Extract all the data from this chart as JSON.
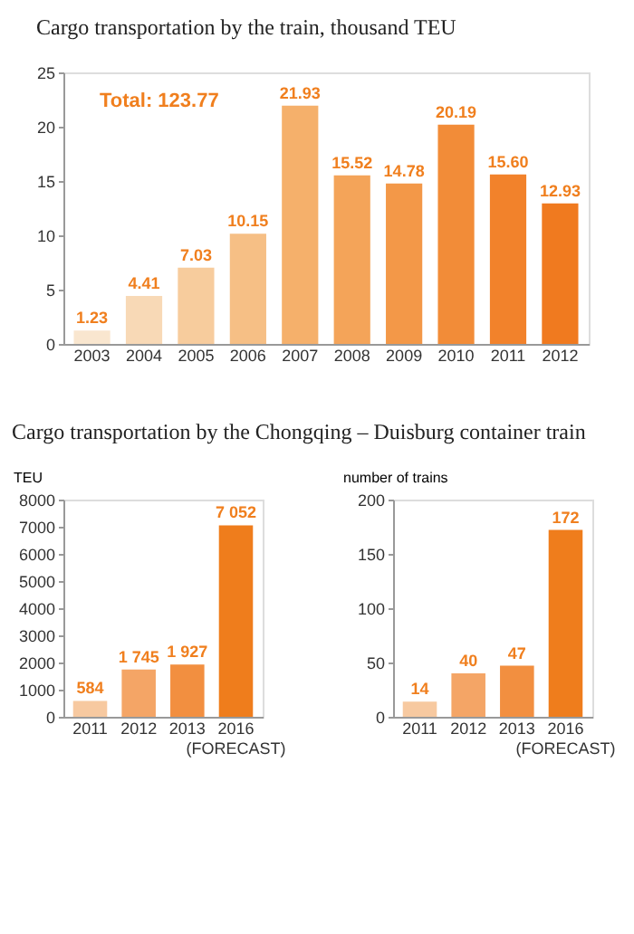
{
  "chart_data": [
    {
      "type": "bar",
      "title": "Cargo transportation by the train, thousand TEU",
      "categories": [
        "2003",
        "2004",
        "2005",
        "2006",
        "2007",
        "2008",
        "2009",
        "2010",
        "2011",
        "2012"
      ],
      "values": [
        1.23,
        4.41,
        7.03,
        10.15,
        21.93,
        15.52,
        14.78,
        20.19,
        15.6,
        12.93
      ],
      "value_labels": [
        "1.23",
        "4.41",
        "7.03",
        "10.15",
        "21.93",
        "15.52",
        "14.78",
        "20.19",
        "15.60",
        "12.93"
      ],
      "colors": [
        "#f9e6cf",
        "#f8d9b6",
        "#f7cc9d",
        "#f6bf85",
        "#f5b06b",
        "#f4a459",
        "#f39848",
        "#f28c38",
        "#f2822b",
        "#f07a1f"
      ],
      "ylim": [
        0,
        25
      ],
      "yticks": [
        0,
        5,
        10,
        15,
        20,
        25
      ],
      "grid": false,
      "annotations": [
        "Total: 123.77"
      ]
    },
    {
      "type": "bar",
      "title": "Cargo transportation by the Chongqing – Duisburg container train",
      "ylabel": "TEU",
      "categories": [
        "2011",
        "2012",
        "2013",
        "2016 (FORECAST)"
      ],
      "values": [
        584,
        1745,
        1927,
        7052
      ],
      "value_labels": [
        "584",
        "1 745",
        "1 927",
        "7 052"
      ],
      "colors": [
        "#f7c9a0",
        "#f4a566",
        "#f28f40",
        "#ef7d1c"
      ],
      "ylim": [
        0,
        8000
      ],
      "yticks": [
        0,
        1000,
        2000,
        3000,
        4000,
        5000,
        6000,
        7000,
        8000
      ],
      "grid": false
    },
    {
      "type": "bar",
      "ylabel": "number of trains",
      "categories": [
        "2011",
        "2012",
        "2013",
        "2016 (FORECAST)"
      ],
      "values": [
        14,
        40,
        47,
        172
      ],
      "value_labels": [
        "14",
        "40",
        "47",
        "172"
      ],
      "colors": [
        "#f7c9a0",
        "#f4a566",
        "#f28f40",
        "#ef7d1c"
      ],
      "ylim": [
        0,
        200
      ],
      "yticks": [
        0,
        50,
        100,
        150,
        200
      ],
      "grid": false
    }
  ]
}
